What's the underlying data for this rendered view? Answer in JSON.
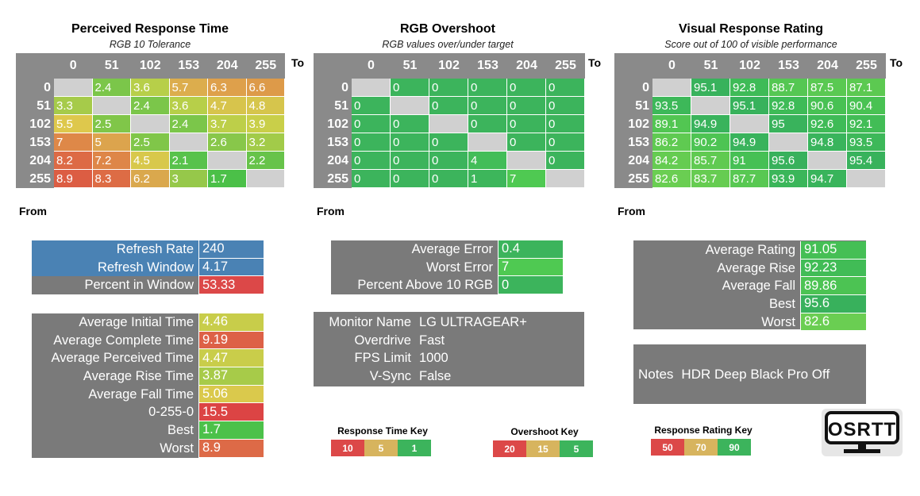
{
  "axis_labels": {
    "to": "To",
    "from": "From"
  },
  "headers": [
    "0",
    "51",
    "102",
    "153",
    "204",
    "255"
  ],
  "response_matrix": {
    "title": "Perceived Response Time",
    "subtitle": "RGB 10 Tolerance",
    "values": [
      [
        "",
        "2.4",
        "3.6",
        "5.7",
        "6.3",
        "6.6"
      ],
      [
        "3.3",
        "",
        "2.4",
        "3.6",
        "4.7",
        "4.8"
      ],
      [
        "5.5",
        "2.5",
        "",
        "2.4",
        "3.7",
        "3.9"
      ],
      [
        "7",
        "5",
        "2.5",
        "",
        "2.6",
        "3.2"
      ],
      [
        "8.2",
        "7.2",
        "4.5",
        "2.1",
        "",
        "2.2"
      ],
      [
        "8.9",
        "8.3",
        "6.2",
        "3",
        "1.7",
        ""
      ]
    ],
    "colors": [
      [
        "",
        "#7bc64a",
        "#b7cf49",
        "#dcad4d",
        "#dea04b",
        "#dd9a49"
      ],
      [
        "#a6cb4a",
        "",
        "#7bc64a",
        "#b7cf49",
        "#d7c44c",
        "#d6c54c"
      ],
      [
        "#dec84c",
        "#80c649",
        "",
        "#7bc64a",
        "#bdcf49",
        "#c9cf49"
      ],
      [
        "#de8848",
        "#dca44d",
        "#80c649",
        "",
        "#88c74a",
        "#a2cb49"
      ],
      [
        "#dd6a45",
        "#de8648",
        "#d8c84b",
        "#58c24b",
        "",
        "#67c34a"
      ],
      [
        "#dc5d43",
        "#dd6c45",
        "#daa84d",
        "#96c84a",
        "#4bc048",
        ""
      ]
    ]
  },
  "overshoot_matrix": {
    "title": "RGB Overshoot",
    "subtitle": "RGB values over/under target",
    "values": [
      [
        "",
        "0",
        "0",
        "0",
        "0",
        "0"
      ],
      [
        "0",
        "",
        "0",
        "0",
        "0",
        "0"
      ],
      [
        "0",
        "0",
        "",
        "0",
        "0",
        "0"
      ],
      [
        "0",
        "0",
        "0",
        "",
        "0",
        "0"
      ],
      [
        "0",
        "0",
        "0",
        "4",
        "",
        "0"
      ],
      [
        "0",
        "0",
        "0",
        "1",
        "7",
        ""
      ]
    ],
    "colors": [
      [
        "",
        "#3cb45c",
        "#3cb45c",
        "#3cb45c",
        "#3cb45c",
        "#3cb45c"
      ],
      [
        "#3cb45c",
        "",
        "#3cb45c",
        "#3cb45c",
        "#3cb45c",
        "#3cb45c"
      ],
      [
        "#3cb45c",
        "#3cb45c",
        "",
        "#3cb45c",
        "#3cb45c",
        "#3cb45c"
      ],
      [
        "#3cb45c",
        "#3cb45c",
        "#3cb45c",
        "",
        "#3cb45c",
        "#3cb45c"
      ],
      [
        "#3cb45c",
        "#3cb45c",
        "#3cb45c",
        "#42bd58",
        "",
        "#3cb45c"
      ],
      [
        "#3cb45c",
        "#3cb45c",
        "#3cb45c",
        "#3db65b",
        "#4fc952",
        ""
      ]
    ]
  },
  "rating_matrix": {
    "title": "Visual Response Rating",
    "subtitle": "Score out of 100 of visible performance",
    "values": [
      [
        "",
        "95.1",
        "92.8",
        "88.7",
        "87.5",
        "87.1"
      ],
      [
        "93.5",
        "",
        "95.1",
        "92.8",
        "90.6",
        "90.4"
      ],
      [
        "89.1",
        "94.9",
        "",
        "95",
        "92.6",
        "92.1"
      ],
      [
        "86.2",
        "90.2",
        "94.9",
        "",
        "94.8",
        "93.5"
      ],
      [
        "84.2",
        "85.7",
        "91",
        "95.6",
        "",
        "95.4"
      ],
      [
        "82.6",
        "83.7",
        "87.7",
        "93.9",
        "94.7",
        ""
      ]
    ],
    "colors": [
      [
        "",
        "#38b25c",
        "#3ebb57",
        "#55c753",
        "#5ac952",
        "#5cc951"
      ],
      [
        "#3db859",
        "",
        "#38b25c",
        "#3ebb57",
        "#48c153",
        "#49c253"
      ],
      [
        "#52c652",
        "#39b35c",
        "",
        "#39b35c",
        "#3fbb57",
        "#42bd56"
      ],
      [
        "#5fca51",
        "#4dc453",
        "#39b35c",
        "",
        "#39b45c",
        "#3db859"
      ],
      [
        "#65cc51",
        "#60ca51",
        "#46c054",
        "#38b15c",
        "",
        "#38b25c"
      ],
      [
        "#6ace52",
        "#66cc51",
        "#58c852",
        "#3bb65a",
        "#39b45b",
        ""
      ]
    ]
  },
  "refresh_panel": {
    "rows": [
      {
        "label": "Refresh Rate",
        "value": "240",
        "label_bg": "#4a82b4",
        "value_bg": "#4a82b4"
      },
      {
        "label": "Refresh Window",
        "value": "4.17",
        "label_bg": "#4a82b4",
        "value_bg": "#4a82b4"
      },
      {
        "label": "Percent in Window",
        "value": "53.33",
        "label_bg": "#7a7a7a",
        "value_bg": "#dc4848"
      }
    ]
  },
  "timing_panel": {
    "rows": [
      {
        "label": "Average Initial Time",
        "value": "4.46",
        "value_bg": "#c8cd4a"
      },
      {
        "label": "Average Complete Time",
        "value": "9.19",
        "value_bg": "#dd6147"
      },
      {
        "label": "Average Perceived Time",
        "value": "4.47",
        "value_bg": "#c9cd4a"
      },
      {
        "label": "Average Rise Time",
        "value": "3.87",
        "value_bg": "#a7cb49"
      },
      {
        "label": "Average Fall Time",
        "value": "5.06",
        "value_bg": "#dac94c"
      },
      {
        "label": "0-255-0",
        "value": "15.5",
        "value_bg": "#dc4444"
      },
      {
        "label": "Best",
        "value": "1.7",
        "value_bg": "#4cc14a"
      },
      {
        "label": "Worst",
        "value": "8.9",
        "value_bg": "#dd6a47"
      }
    ]
  },
  "error_panel": {
    "rows": [
      {
        "label": "Average Error",
        "value": "0.4",
        "value_bg": "#3cb45c"
      },
      {
        "label": "Worst Error",
        "value": "7",
        "value_bg": "#4fc952"
      },
      {
        "label": "Percent Above 10 RGB",
        "value": "0",
        "value_bg": "#3cb45c"
      }
    ]
  },
  "monitor_panel": {
    "rows": [
      {
        "label": "Monitor Name",
        "value": "LG ULTRAGEAR+"
      },
      {
        "label": "Overdrive",
        "value": "Fast"
      },
      {
        "label": "FPS Limit",
        "value": "1000"
      },
      {
        "label": "V-Sync",
        "value": "False"
      }
    ]
  },
  "rating_panel": {
    "rows": [
      {
        "label": "Average Rating",
        "value": "91.05",
        "value_bg": "#45bf55"
      },
      {
        "label": "Average Rise",
        "value": "92.23",
        "value_bg": "#41bc56"
      },
      {
        "label": "Average Fall",
        "value": "89.86",
        "value_bg": "#4cc353"
      },
      {
        "label": "Best",
        "value": "95.6",
        "value_bg": "#38b15c"
      },
      {
        "label": "Worst",
        "value": "82.6",
        "value_bg": "#6ace52"
      }
    ]
  },
  "notes_panel": {
    "label": "Notes",
    "value": "HDR Deep Black Pro Off"
  },
  "keys": {
    "response": {
      "title": "Response Time Key",
      "items": [
        {
          "label": "10",
          "color": "#dc4848"
        },
        {
          "label": "5",
          "color": "#d7b45e"
        },
        {
          "label": "1",
          "color": "#3cb45c"
        }
      ]
    },
    "overshoot": {
      "title": "Overshoot Key",
      "items": [
        {
          "label": "20",
          "color": "#dc4848"
        },
        {
          "label": "15",
          "color": "#d7b45e"
        },
        {
          "label": "5",
          "color": "#3cb45c"
        }
      ]
    },
    "rating": {
      "title": "Response Rating Key",
      "items": [
        {
          "label": "50",
          "color": "#dc4848"
        },
        {
          "label": "70",
          "color": "#d7b45e"
        },
        {
          "label": "90",
          "color": "#3cb45c"
        }
      ]
    }
  },
  "logo": {
    "text": "OSRTT"
  }
}
